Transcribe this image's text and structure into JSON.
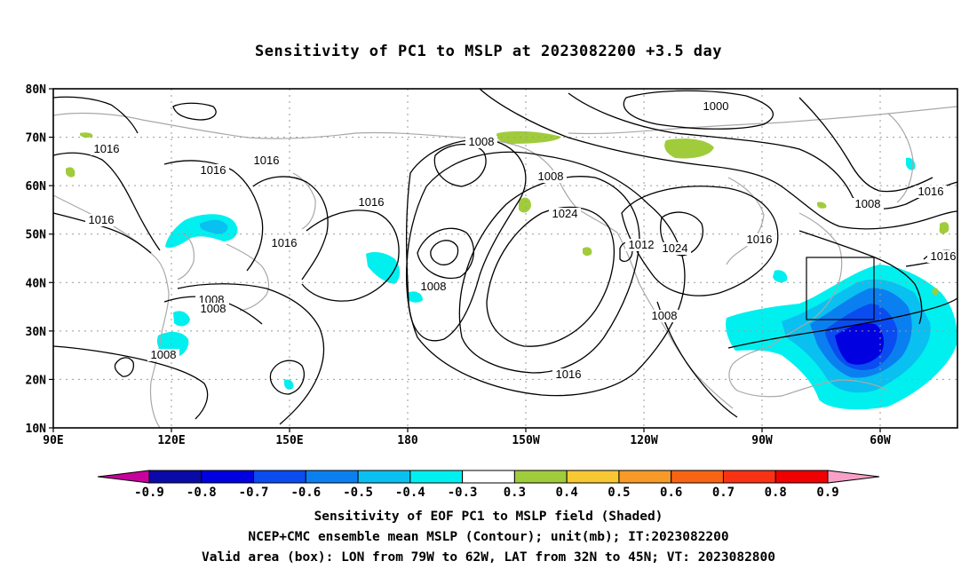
{
  "title": "Sensitivity of PC1 to MSLP at 2023082200 +3.5 day",
  "map": {
    "lat_labels": [
      "80N",
      "70N",
      "60N",
      "50N",
      "40N",
      "30N",
      "20N",
      "10N"
    ],
    "lon_labels": [
      "90E",
      "120E",
      "150E",
      "180",
      "150W",
      "120W",
      "90W",
      "60W"
    ],
    "valid_box": {
      "lon_from": "79W",
      "lon_to": "62W",
      "lat_from": "32N",
      "lat_to": "45N"
    },
    "contour_labels": [
      "1000",
      "1008",
      "1016",
      "1016",
      "1008",
      "1016",
      "1024",
      "1008",
      "1016",
      "1024",
      "1016",
      "1008",
      "1016",
      "1016",
      "1008",
      "1008",
      "1016",
      "1008",
      "1016",
      "1016",
      "1008",
      "1012"
    ],
    "colors": {
      "coast": "#a8a8a8",
      "contour": "#000000",
      "grid": "#9a9a9a"
    }
  },
  "colorbar": {
    "labels": [
      "-0.9",
      "-0.8",
      "-0.7",
      "-0.6",
      "-0.5",
      "-0.4",
      "-0.3",
      "0.3",
      "0.4",
      "0.5",
      "0.6",
      "0.7",
      "0.8",
      "0.9"
    ],
    "colors": [
      "#c8009c",
      "#0a0aa8",
      "#0000e0",
      "#0a4cf0",
      "#0a80f0",
      "#0ac0f0",
      "#00f0f0",
      "#ffffff",
      "#a0cc3c",
      "#f8c832",
      "#f89a28",
      "#f86414",
      "#f83214",
      "#f00000",
      "#f8a0c8"
    ]
  },
  "captions": {
    "line1": "Sensitivity of EOF PC1 to MSLP field (Shaded)",
    "line2": "NCEP+CMC ensemble mean MSLP (Contour); unit(mb); IT:2023082200",
    "line3": "Valid area (box): LON from 79W to 62W, LAT from 32N to 45N; VT: 2023082800"
  }
}
